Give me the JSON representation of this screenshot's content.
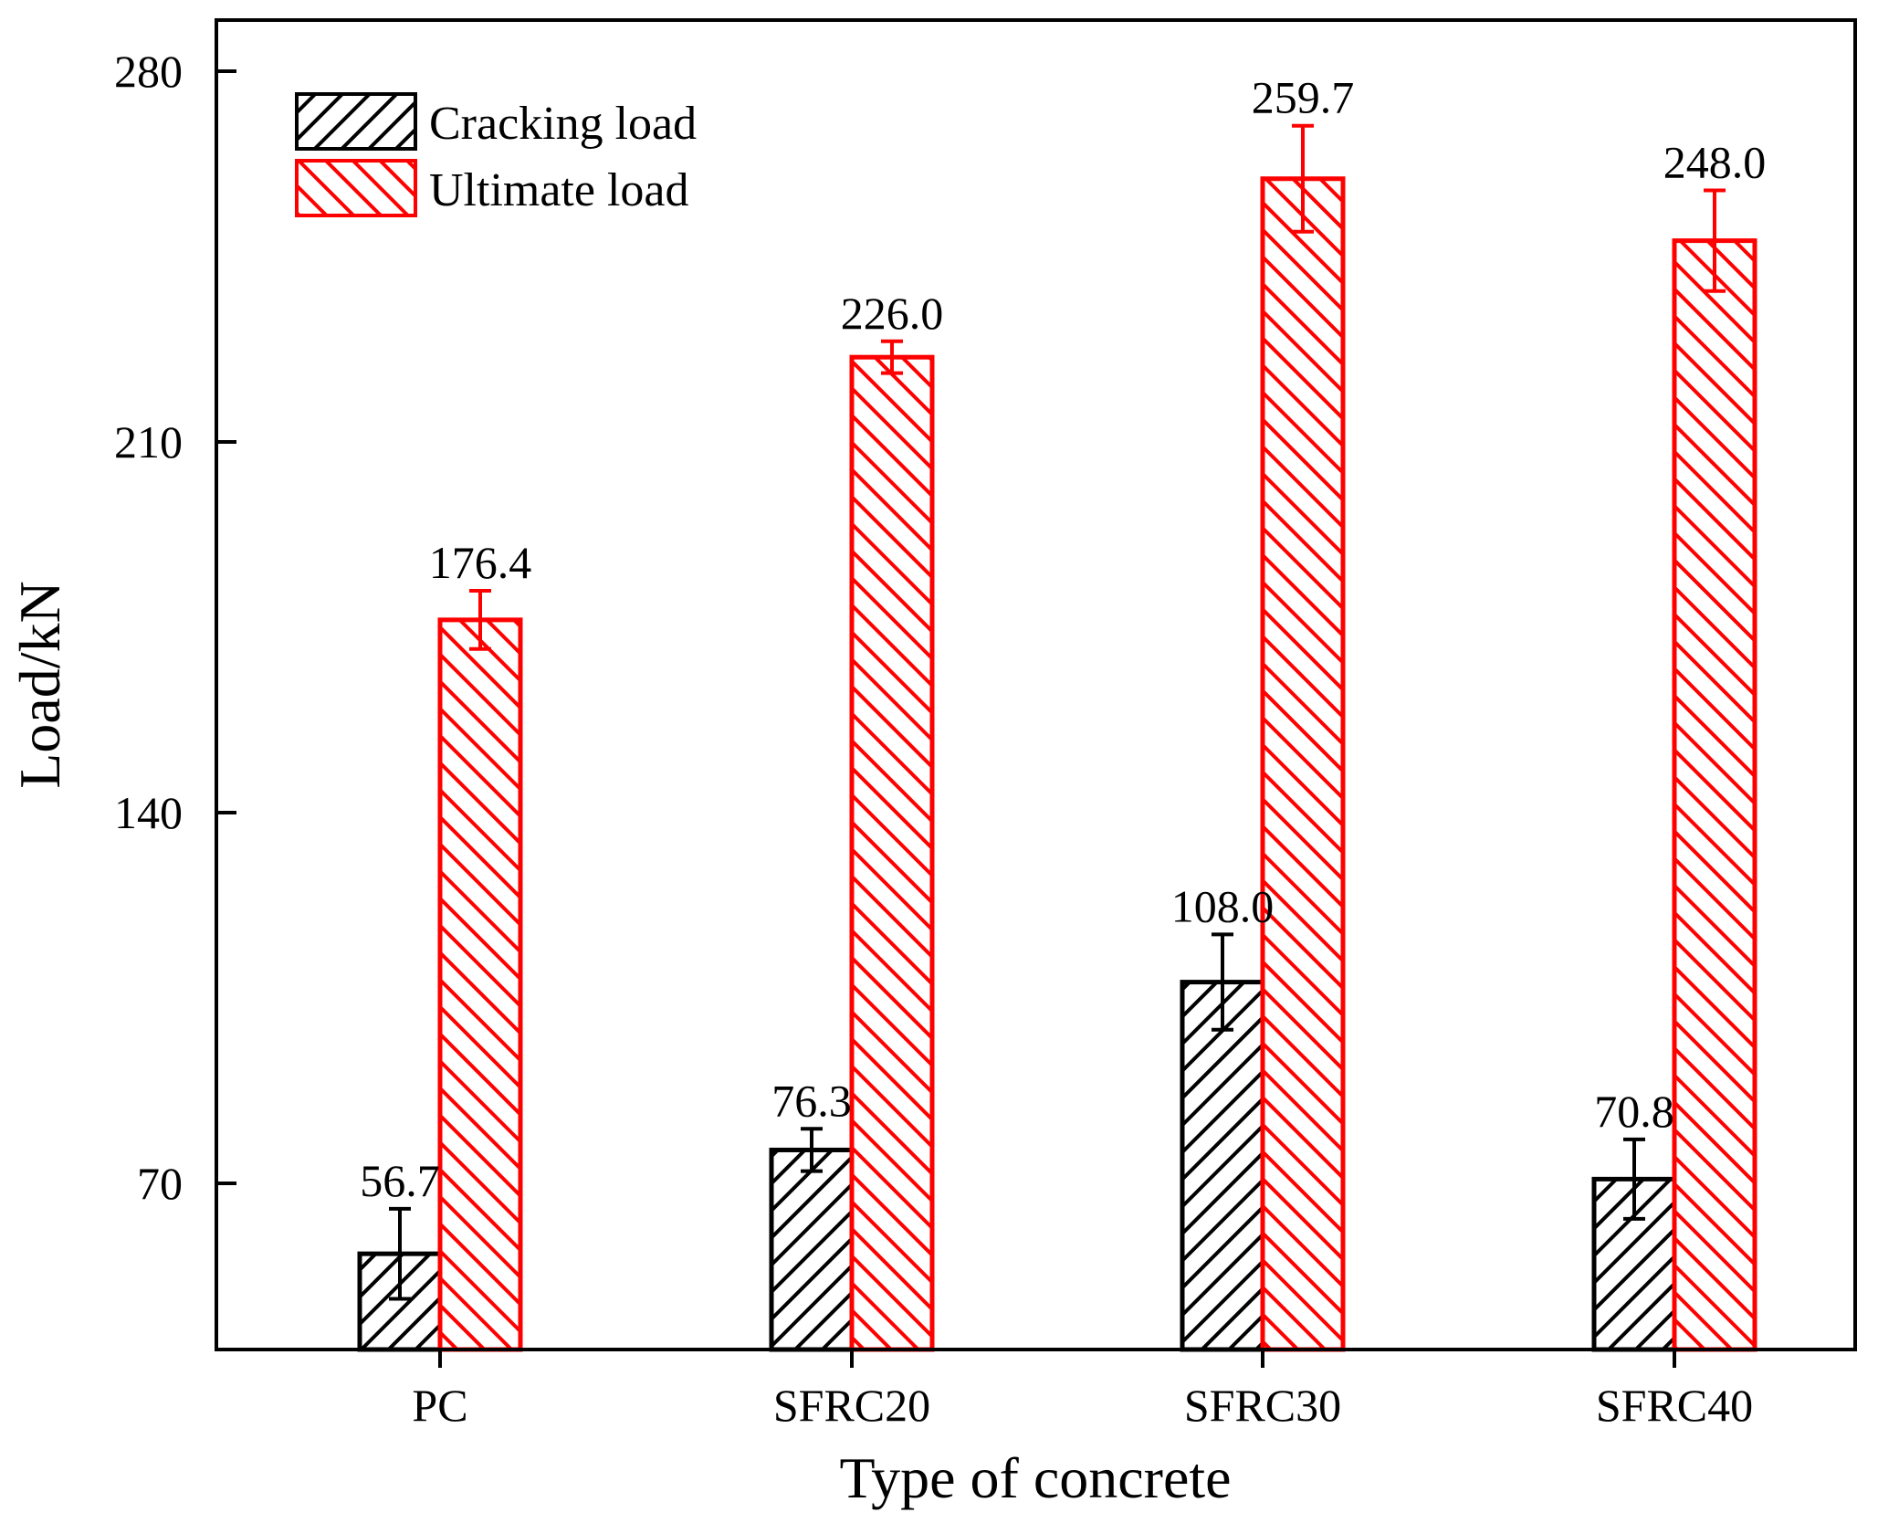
{
  "chart_data": {
    "type": "bar",
    "title": "",
    "xlabel": "Type of concrete",
    "ylabel": "Load/kN",
    "categories": [
      "PC",
      "SFRC20",
      "SFRC30",
      "SFRC40"
    ],
    "ylim": [
      40,
      290
    ],
    "yticks": [
      70,
      140,
      210,
      280
    ],
    "grid": false,
    "legend_position": "top-left",
    "series": [
      {
        "name": "Cracking load",
        "color": "#000000",
        "pattern": "forward-diagonal-hatch",
        "values": [
          56.7,
          76.3,
          108.0,
          70.8
        ],
        "labels": [
          "56.7",
          "76.3",
          "108.0",
          "70.8"
        ],
        "error": [
          8.5,
          4.0,
          9.0,
          7.5
        ]
      },
      {
        "name": "Ultimate load",
        "color": "#ff0000",
        "pattern": "backward-diagonal-hatch",
        "values": [
          176.4,
          226.0,
          259.7,
          248.0
        ],
        "labels": [
          "176.4",
          "226.0",
          "259.7",
          "248.0"
        ],
        "error": [
          5.5,
          3.0,
          10.0,
          9.5
        ]
      }
    ]
  }
}
